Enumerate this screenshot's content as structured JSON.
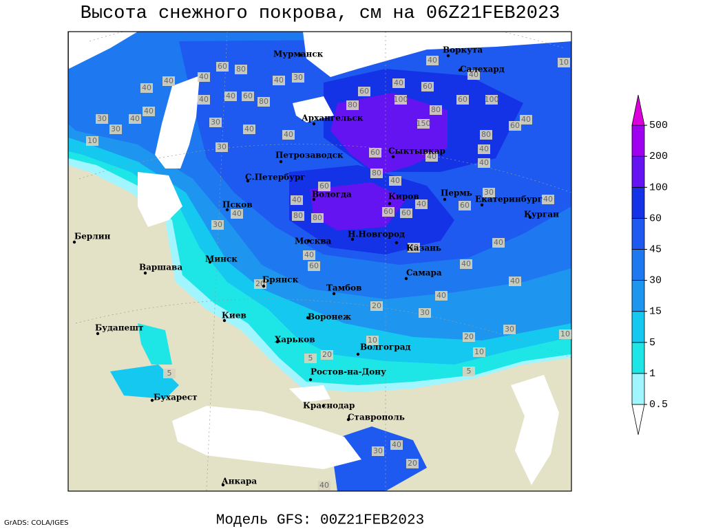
{
  "title": "Высота снежного покрова, см на 06Z21FEB2023",
  "footer": {
    "model": "Модель GFS: 00Z21FEB2023",
    "credit": "GrADS: COLA/IGES"
  },
  "legend": {
    "levels": [
      0.5,
      1,
      5,
      15,
      30,
      45,
      60,
      100,
      200,
      500
    ],
    "colors": [
      "#ffffff",
      "#a0f5ff",
      "#1ee6e6",
      "#14c8f0",
      "#1e96f0",
      "#1e78f0",
      "#1e5af0",
      "#1432e6",
      "#6414f0",
      "#a000f0",
      "#dc00dc"
    ]
  },
  "cities": [
    "Мурманск",
    "Воркута",
    "Салехард",
    "Архангельск",
    "Сыктывкар",
    "Петрозаводск",
    "С.Петербург",
    "Вологда",
    "Киров",
    "Пермь",
    "Екатеринбург",
    "Курган",
    "Псков",
    "Н.Новгород",
    "Москва",
    "Казань",
    "Берлин",
    "Варшава",
    "Минск",
    "Брянск",
    "Тамбов",
    "Самара",
    "Киев",
    "Воронеж",
    "Будапешт",
    "Харьков",
    "Волгоград",
    "Ростов-на-Дону",
    "Бухарест",
    "Краснодар",
    "Ставрополь",
    "Анкара"
  ],
  "contour_labels": [
    60,
    80,
    40,
    40,
    40,
    40,
    40,
    60,
    80,
    40,
    30,
    40,
    40,
    30,
    30,
    10,
    30,
    40,
    30,
    40,
    40,
    40,
    100,
    60,
    100,
    40,
    60,
    60,
    80,
    80,
    150,
    80,
    60,
    40,
    40,
    40,
    40,
    60,
    80,
    40,
    60,
    40,
    80,
    80,
    60,
    60,
    40,
    60,
    30,
    40,
    40,
    30,
    40,
    40,
    40,
    40,
    40,
    40,
    60,
    20,
    20,
    30,
    30,
    20,
    10,
    10,
    20,
    5,
    5,
    10,
    5,
    30,
    40,
    20,
    40,
    10
  ]
}
